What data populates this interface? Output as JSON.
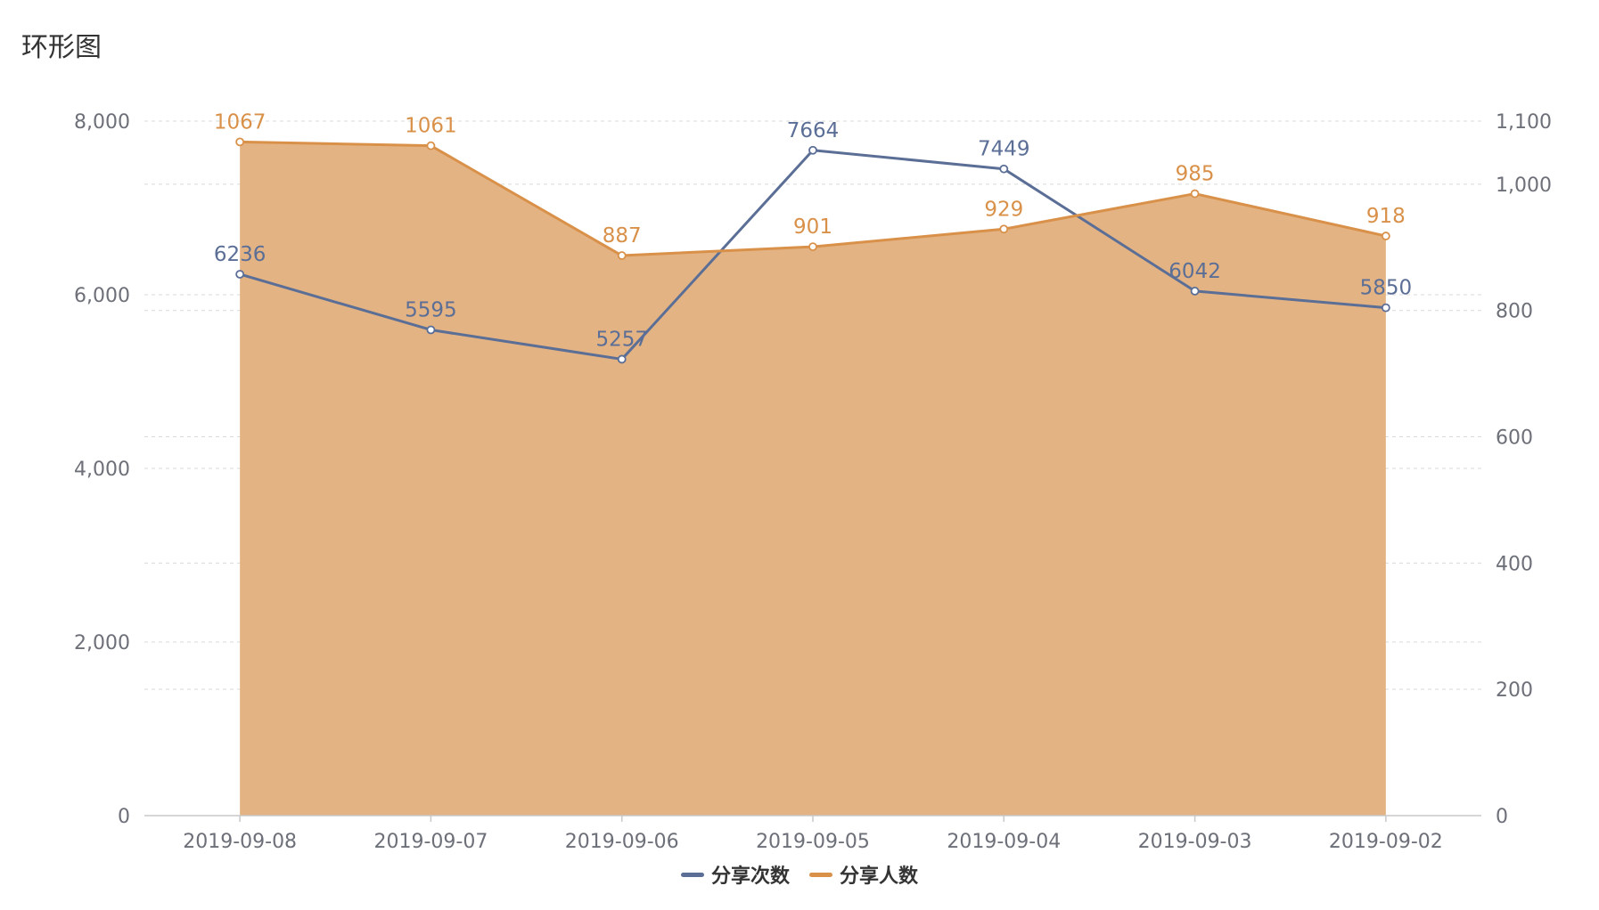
{
  "title": "环形图",
  "chart_data": {
    "type": "line",
    "categories": [
      "2019-09-08",
      "2019-09-07",
      "2019-09-06",
      "2019-09-05",
      "2019-09-04",
      "2019-09-03",
      "2019-09-02"
    ],
    "series": [
      {
        "name": "分享次数",
        "axis": "left",
        "values": [
          6236,
          5595,
          5257,
          7664,
          7449,
          6042,
          5850
        ],
        "color": "#5b6e96",
        "area": false
      },
      {
        "name": "分享人数",
        "axis": "right",
        "values": [
          1067,
          1061,
          887,
          901,
          929,
          985,
          918
        ],
        "color": "#d9914a",
        "area": true,
        "area_color": "#e3b384"
      }
    ],
    "y_left": {
      "ylim": [
        0,
        8000
      ],
      "ticks": [
        0,
        2000,
        4000,
        6000,
        8000
      ],
      "tick_labels": [
        "0",
        "2,000",
        "4,000",
        "6,000",
        "8,000"
      ]
    },
    "y_right": {
      "ylim": [
        0,
        1100
      ],
      "ticks": [
        0,
        200,
        400,
        600,
        800,
        1000,
        1100
      ],
      "tick_labels": [
        "0",
        "200",
        "400",
        "600",
        "800",
        "1,000",
        "1,100"
      ]
    },
    "legend": {
      "position": "bottom-center"
    },
    "grid": true
  }
}
